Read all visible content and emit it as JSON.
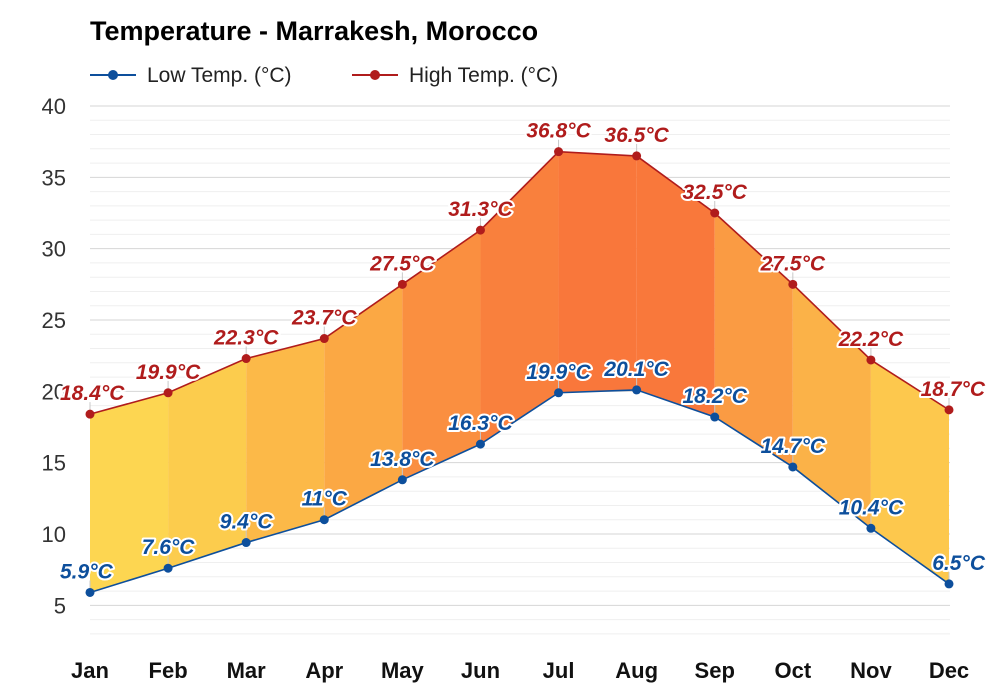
{
  "chart_data": {
    "type": "area",
    "title": "Temperature - Marrakesh, Morocco",
    "categories": [
      "Jan",
      "Feb",
      "Mar",
      "Apr",
      "May",
      "Jun",
      "Jul",
      "Aug",
      "Sep",
      "Oct",
      "Nov",
      "Dec"
    ],
    "series": [
      {
        "name": "Low Temp. (°C)",
        "color": "#0d4f9c",
        "values": [
          5.9,
          7.6,
          9.4,
          11,
          13.8,
          16.3,
          19.9,
          20.1,
          18.2,
          14.7,
          10.4,
          6.5
        ],
        "labels": [
          "5.9°C",
          "7.6°C",
          "9.4°C",
          "11°C",
          "13.8°C",
          "16.3°C",
          "19.9°C",
          "20.1°C",
          "18.2°C",
          "14.7°C",
          "10.4°C",
          "6.5°C"
        ]
      },
      {
        "name": "High Temp. (°C)",
        "color": "#b01c1c",
        "values": [
          18.4,
          19.9,
          22.3,
          23.7,
          27.5,
          31.3,
          36.8,
          36.5,
          32.5,
          27.5,
          22.2,
          18.7
        ],
        "labels": [
          "18.4°C",
          "19.9°C",
          "22.3°C",
          "23.7°C",
          "27.5°C",
          "31.3°C",
          "36.8°C",
          "36.5°C",
          "32.5°C",
          "27.5°C",
          "22.2°C",
          "18.7°C"
        ]
      }
    ],
    "yticks": [
      "5",
      "10",
      "15",
      "20",
      "25",
      "30",
      "35",
      "40"
    ],
    "ylim": [
      2.5,
      40
    ],
    "grid": true,
    "legend_position": "top-left",
    "band_colors": [
      "#fdd651",
      "#fccc4d",
      "#fcb948",
      "#fba844",
      "#fa8f40",
      "#f9803d",
      "#f9773b",
      "#f9783b",
      "#fa9b43",
      "#fbb248",
      "#fdc84d",
      "#fdd651"
    ]
  }
}
